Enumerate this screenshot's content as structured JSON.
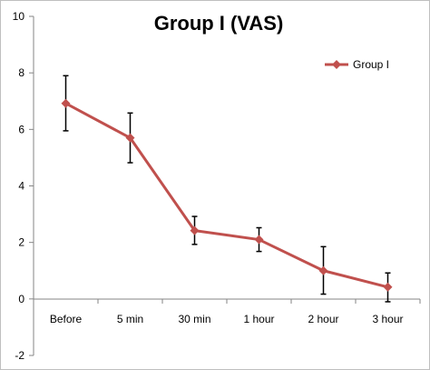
{
  "chart_data": {
    "type": "line",
    "title": "Group I (VAS)",
    "xlabel": "",
    "ylabel": "",
    "categories": [
      "Before",
      "5 min",
      "30 min",
      "1 hour",
      "2 hour",
      "3 hour"
    ],
    "ylim": [
      -2,
      10
    ],
    "yticks": [
      "-2",
      "0",
      "2",
      "4",
      "6",
      "8",
      "10"
    ],
    "grid": false,
    "legend_position": "top-right",
    "series": [
      {
        "name": "Group I",
        "color": "#c0504d",
        "marker": "diamond",
        "values": [
          6.92,
          5.7,
          2.42,
          2.1,
          1.0,
          0.42
        ],
        "error_low": [
          5.95,
          4.82,
          1.93,
          1.68,
          0.17,
          -0.1
        ],
        "error_high": [
          7.9,
          6.58,
          2.92,
          2.52,
          1.85,
          0.92
        ]
      }
    ]
  }
}
